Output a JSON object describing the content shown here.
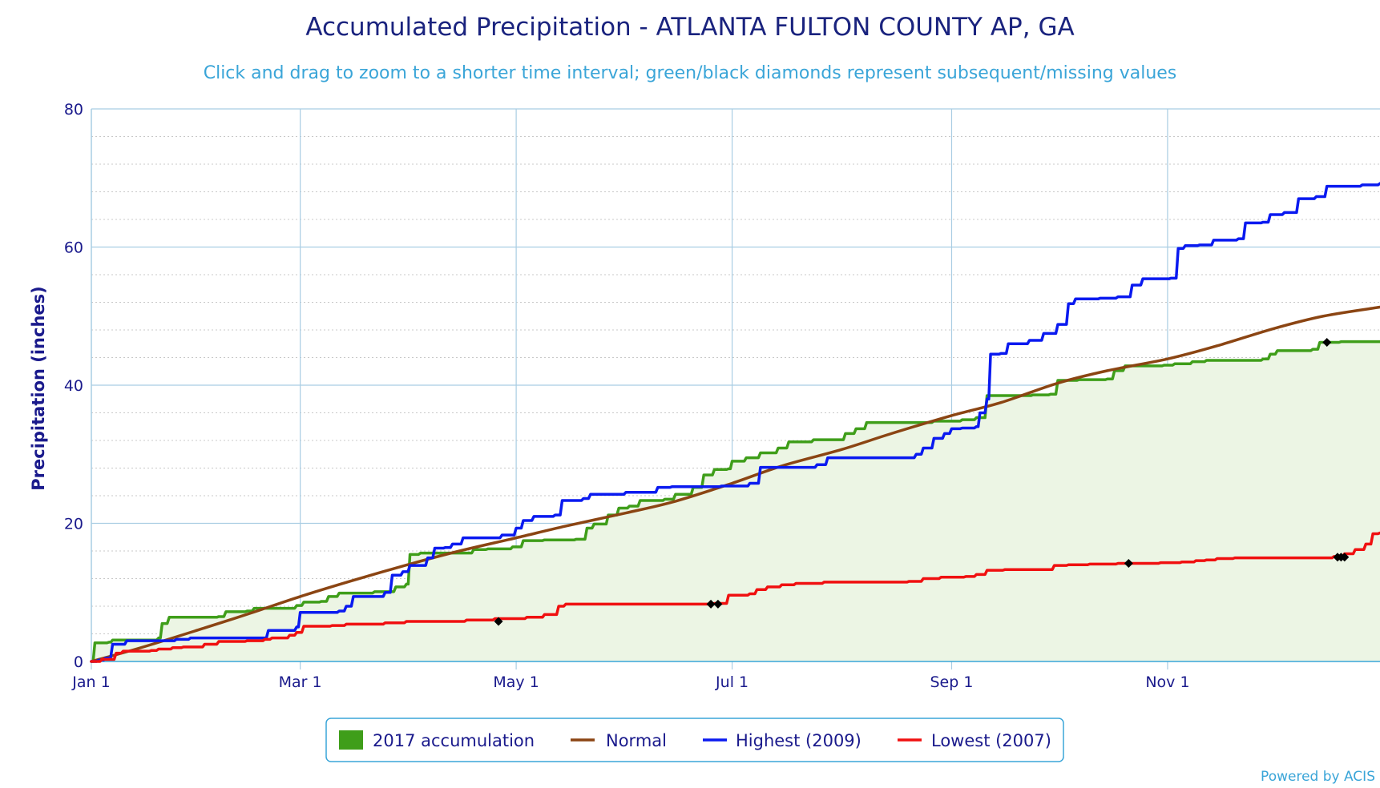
{
  "chart_data": {
    "type": "line",
    "title": "Accumulated Precipitation - ATLANTA FULTON COUNTY AP, GA",
    "subtitle": "Click and drag to zoom to a shorter time interval; green/black diamonds represent subsequent/missing values",
    "ylabel": "Precipitation (inches)",
    "xlabel": "",
    "xlim": [
      "2017-01-01",
      "2017-12-31"
    ],
    "ylim": [
      0,
      80
    ],
    "y_ticks": [
      "0",
      "20",
      "40",
      "60",
      "80"
    ],
    "x_ticks": [
      {
        "label": "Jan 1",
        "date": "2017-01-01"
      },
      {
        "label": "Mar 1",
        "date": "2017-03-01"
      },
      {
        "label": "May 1",
        "date": "2017-05-01"
      },
      {
        "label": "Jul 1",
        "date": "2017-07-01"
      },
      {
        "label": "Sep 1",
        "date": "2017-09-01"
      },
      {
        "label": "Nov 1",
        "date": "2017-11-01"
      }
    ],
    "grid": true,
    "legend_position": "bottom-center",
    "series": [
      {
        "name": "2017 accumulation",
        "color": "#3f9e1a",
        "fill": "#ecf5e4",
        "style": "area-step",
        "points": [
          [
            "2017-01-01",
            0
          ],
          [
            "2017-01-02",
            2.7
          ],
          [
            "2017-01-06",
            2.8
          ],
          [
            "2017-01-07",
            3.1
          ],
          [
            "2017-01-20",
            3.4
          ],
          [
            "2017-01-21",
            5.5
          ],
          [
            "2017-01-23",
            6.4
          ],
          [
            "2017-02-06",
            6.5
          ],
          [
            "2017-02-08",
            7.2
          ],
          [
            "2017-02-14",
            7.3
          ],
          [
            "2017-02-16",
            7.7
          ],
          [
            "2017-02-28",
            8.1
          ],
          [
            "2017-03-02",
            8.6
          ],
          [
            "2017-03-07",
            8.7
          ],
          [
            "2017-03-09",
            9.4
          ],
          [
            "2017-03-12",
            9.9
          ],
          [
            "2017-03-22",
            10.1
          ],
          [
            "2017-03-28",
            10.8
          ],
          [
            "2017-03-31",
            11.2
          ],
          [
            "2017-04-01",
            15.5
          ],
          [
            "2017-04-04",
            15.7
          ],
          [
            "2017-04-19",
            16.2
          ],
          [
            "2017-04-23",
            16.3
          ],
          [
            "2017-04-30",
            16.6
          ],
          [
            "2017-05-03",
            17.5
          ],
          [
            "2017-05-09",
            17.6
          ],
          [
            "2017-05-18",
            17.7
          ],
          [
            "2017-05-21",
            19.3
          ],
          [
            "2017-05-23",
            19.9
          ],
          [
            "2017-05-27",
            21.2
          ],
          [
            "2017-05-30",
            22.2
          ],
          [
            "2017-06-02",
            22.5
          ],
          [
            "2017-06-05",
            23.3
          ],
          [
            "2017-06-12",
            23.5
          ],
          [
            "2017-06-15",
            24.2
          ],
          [
            "2017-06-20",
            25.2
          ],
          [
            "2017-06-23",
            27.0
          ],
          [
            "2017-06-26",
            27.8
          ],
          [
            "2017-06-30",
            27.9
          ],
          [
            "2017-07-01",
            29.0
          ],
          [
            "2017-07-05",
            29.5
          ],
          [
            "2017-07-09",
            30.2
          ],
          [
            "2017-07-14",
            30.9
          ],
          [
            "2017-07-17",
            31.8
          ],
          [
            "2017-07-24",
            32.1
          ],
          [
            "2017-08-02",
            33.0
          ],
          [
            "2017-08-05",
            33.7
          ],
          [
            "2017-08-08",
            34.6
          ],
          [
            "2017-08-27",
            34.8
          ],
          [
            "2017-09-04",
            35.0
          ],
          [
            "2017-09-08",
            35.3
          ],
          [
            "2017-09-11",
            38.5
          ],
          [
            "2017-09-24",
            38.6
          ],
          [
            "2017-09-29",
            38.7
          ],
          [
            "2017-10-01",
            40.7
          ],
          [
            "2017-10-07",
            40.8
          ],
          [
            "2017-10-15",
            40.9
          ],
          [
            "2017-10-17",
            42.1
          ],
          [
            "2017-10-20",
            42.8
          ],
          [
            "2017-10-31",
            42.9
          ],
          [
            "2017-11-03",
            43.1
          ],
          [
            "2017-11-08",
            43.4
          ],
          [
            "2017-11-12",
            43.6
          ],
          [
            "2017-11-28",
            43.8
          ],
          [
            "2017-11-30",
            44.5
          ],
          [
            "2017-12-02",
            45.0
          ],
          [
            "2017-12-12",
            45.2
          ],
          [
            "2017-12-14",
            46.2
          ],
          [
            "2017-12-20",
            46.3
          ],
          [
            "2017-12-31",
            46.3
          ]
        ],
        "missing_markers": [
          [
            "2017-12-16",
            46.2
          ]
        ]
      },
      {
        "name": "Normal",
        "color": "#8b4513",
        "style": "smooth",
        "points": [
          [
            "2017-01-01",
            0
          ],
          [
            "2017-01-15",
            2.0
          ],
          [
            "2017-02-01",
            4.7
          ],
          [
            "2017-02-15",
            7.0
          ],
          [
            "2017-03-01",
            9.4
          ],
          [
            "2017-03-15",
            11.6
          ],
          [
            "2017-04-01",
            14.1
          ],
          [
            "2017-04-15",
            16.0
          ],
          [
            "2017-05-01",
            17.9
          ],
          [
            "2017-05-15",
            19.6
          ],
          [
            "2017-06-01",
            21.5
          ],
          [
            "2017-06-15",
            23.2
          ],
          [
            "2017-07-01",
            25.8
          ],
          [
            "2017-07-15",
            28.3
          ],
          [
            "2017-08-01",
            30.7
          ],
          [
            "2017-08-15",
            33.0
          ],
          [
            "2017-09-01",
            35.6
          ],
          [
            "2017-09-15",
            37.5
          ],
          [
            "2017-10-01",
            40.3
          ],
          [
            "2017-10-15",
            42.1
          ],
          [
            "2017-11-01",
            43.8
          ],
          [
            "2017-11-15",
            45.7
          ],
          [
            "2017-12-01",
            48.2
          ],
          [
            "2017-12-15",
            50.0
          ],
          [
            "2017-12-31",
            51.3
          ]
        ]
      },
      {
        "name": "Highest (2009)",
        "color": "#0a1af0",
        "style": "step",
        "points": [
          [
            "2017-01-01",
            0
          ],
          [
            "2017-01-03",
            0.2
          ],
          [
            "2017-01-05",
            0.5
          ],
          [
            "2017-01-07",
            2.5
          ],
          [
            "2017-01-11",
            3.0
          ],
          [
            "2017-01-25",
            3.2
          ],
          [
            "2017-01-29",
            3.4
          ],
          [
            "2017-02-20",
            4.5
          ],
          [
            "2017-02-28",
            5.0
          ],
          [
            "2017-03-01",
            7.1
          ],
          [
            "2017-03-12",
            7.3
          ],
          [
            "2017-03-14",
            8.0
          ],
          [
            "2017-03-16",
            9.4
          ],
          [
            "2017-03-25",
            10.0
          ],
          [
            "2017-03-27",
            12.5
          ],
          [
            "2017-03-30",
            13.0
          ],
          [
            "2017-04-01",
            13.9
          ],
          [
            "2017-04-06",
            15.0
          ],
          [
            "2017-04-08",
            16.4
          ],
          [
            "2017-04-11",
            16.5
          ],
          [
            "2017-04-13",
            17.0
          ],
          [
            "2017-04-16",
            17.9
          ],
          [
            "2017-04-27",
            18.3
          ],
          [
            "2017-05-01",
            19.3
          ],
          [
            "2017-05-03",
            20.4
          ],
          [
            "2017-05-06",
            21.0
          ],
          [
            "2017-05-12",
            21.2
          ],
          [
            "2017-05-14",
            23.3
          ],
          [
            "2017-05-20",
            23.6
          ],
          [
            "2017-05-22",
            24.2
          ],
          [
            "2017-06-01",
            24.5
          ],
          [
            "2017-06-10",
            25.2
          ],
          [
            "2017-06-14",
            25.3
          ],
          [
            "2017-06-28",
            25.4
          ],
          [
            "2017-07-06",
            25.8
          ],
          [
            "2017-07-09",
            28.1
          ],
          [
            "2017-07-25",
            28.5
          ],
          [
            "2017-07-28",
            29.5
          ],
          [
            "2017-08-22",
            30.0
          ],
          [
            "2017-08-24",
            30.9
          ],
          [
            "2017-08-27",
            32.3
          ],
          [
            "2017-08-30",
            33.0
          ],
          [
            "2017-09-01",
            33.7
          ],
          [
            "2017-09-04",
            33.8
          ],
          [
            "2017-09-08",
            34.0
          ],
          [
            "2017-09-09",
            36.0
          ],
          [
            "2017-09-11",
            38.0
          ],
          [
            "2017-09-12",
            44.5
          ],
          [
            "2017-09-15",
            44.6
          ],
          [
            "2017-09-17",
            46.0
          ],
          [
            "2017-09-23",
            46.5
          ],
          [
            "2017-09-27",
            47.5
          ],
          [
            "2017-10-01",
            48.8
          ],
          [
            "2017-10-04",
            51.8
          ],
          [
            "2017-10-06",
            52.5
          ],
          [
            "2017-10-13",
            52.6
          ],
          [
            "2017-10-18",
            52.8
          ],
          [
            "2017-10-22",
            54.5
          ],
          [
            "2017-10-25",
            55.4
          ],
          [
            "2017-11-02",
            55.5
          ],
          [
            "2017-11-04",
            59.8
          ],
          [
            "2017-11-06",
            60.2
          ],
          [
            "2017-11-10",
            60.3
          ],
          [
            "2017-11-14",
            61.0
          ],
          [
            "2017-11-21",
            61.2
          ],
          [
            "2017-11-23",
            63.5
          ],
          [
            "2017-11-28",
            63.6
          ],
          [
            "2017-11-30",
            64.7
          ],
          [
            "2017-12-04",
            65.0
          ],
          [
            "2017-12-08",
            67.0
          ],
          [
            "2017-12-13",
            67.3
          ],
          [
            "2017-12-16",
            68.8
          ],
          [
            "2017-12-26",
            69.0
          ],
          [
            "2017-12-31",
            69.2
          ]
        ]
      },
      {
        "name": "Lowest (2007)",
        "color": "#f01010",
        "style": "step",
        "points": [
          [
            "2017-01-01",
            0
          ],
          [
            "2017-01-04",
            0.3
          ],
          [
            "2017-01-08",
            1.2
          ],
          [
            "2017-01-10",
            1.5
          ],
          [
            "2017-01-18",
            1.6
          ],
          [
            "2017-01-20",
            1.8
          ],
          [
            "2017-01-24",
            2.0
          ],
          [
            "2017-01-27",
            2.1
          ],
          [
            "2017-02-02",
            2.5
          ],
          [
            "2017-02-06",
            2.9
          ],
          [
            "2017-02-14",
            3.0
          ],
          [
            "2017-02-19",
            3.2
          ],
          [
            "2017-02-21",
            3.4
          ],
          [
            "2017-02-26",
            3.8
          ],
          [
            "2017-02-28",
            4.2
          ],
          [
            "2017-03-02",
            5.1
          ],
          [
            "2017-03-10",
            5.2
          ],
          [
            "2017-03-14",
            5.4
          ],
          [
            "2017-03-25",
            5.6
          ],
          [
            "2017-03-31",
            5.8
          ],
          [
            "2017-04-17",
            6.0
          ],
          [
            "2017-04-25",
            6.2
          ],
          [
            "2017-05-04",
            6.4
          ],
          [
            "2017-05-09",
            6.8
          ],
          [
            "2017-05-13",
            8.0
          ],
          [
            "2017-05-15",
            8.3
          ],
          [
            "2017-06-26",
            8.4
          ],
          [
            "2017-06-30",
            9.6
          ],
          [
            "2017-07-06",
            9.8
          ],
          [
            "2017-07-08",
            10.4
          ],
          [
            "2017-07-11",
            10.8
          ],
          [
            "2017-07-15",
            11.1
          ],
          [
            "2017-07-19",
            11.3
          ],
          [
            "2017-07-27",
            11.5
          ],
          [
            "2017-08-20",
            11.6
          ],
          [
            "2017-08-24",
            12.0
          ],
          [
            "2017-08-29",
            12.2
          ],
          [
            "2017-09-05",
            12.3
          ],
          [
            "2017-09-08",
            12.6
          ],
          [
            "2017-09-11",
            13.2
          ],
          [
            "2017-09-16",
            13.3
          ],
          [
            "2017-09-30",
            13.9
          ],
          [
            "2017-10-04",
            14.0
          ],
          [
            "2017-10-10",
            14.1
          ],
          [
            "2017-10-18",
            14.2
          ],
          [
            "2017-10-30",
            14.3
          ],
          [
            "2017-11-05",
            14.4
          ],
          [
            "2017-11-09",
            14.6
          ],
          [
            "2017-11-12",
            14.7
          ],
          [
            "2017-11-15",
            14.9
          ],
          [
            "2017-11-20",
            15.0
          ],
          [
            "2017-12-18",
            15.2
          ],
          [
            "2017-12-21",
            15.6
          ],
          [
            "2017-12-24",
            16.2
          ],
          [
            "2017-12-27",
            17.0
          ],
          [
            "2017-12-29",
            18.5
          ],
          [
            "2017-12-31",
            18.6
          ]
        ],
        "missing_markers": [
          [
            "2017-04-26",
            5.8
          ],
          [
            "2017-06-25",
            8.3
          ],
          [
            "2017-06-27",
            8.3
          ],
          [
            "2017-10-21",
            14.2
          ],
          [
            "2017-12-19",
            15.1
          ],
          [
            "2017-12-20",
            15.1
          ],
          [
            "2017-12-21",
            15.1
          ]
        ]
      }
    ]
  },
  "credits": "Powered by ACIS"
}
